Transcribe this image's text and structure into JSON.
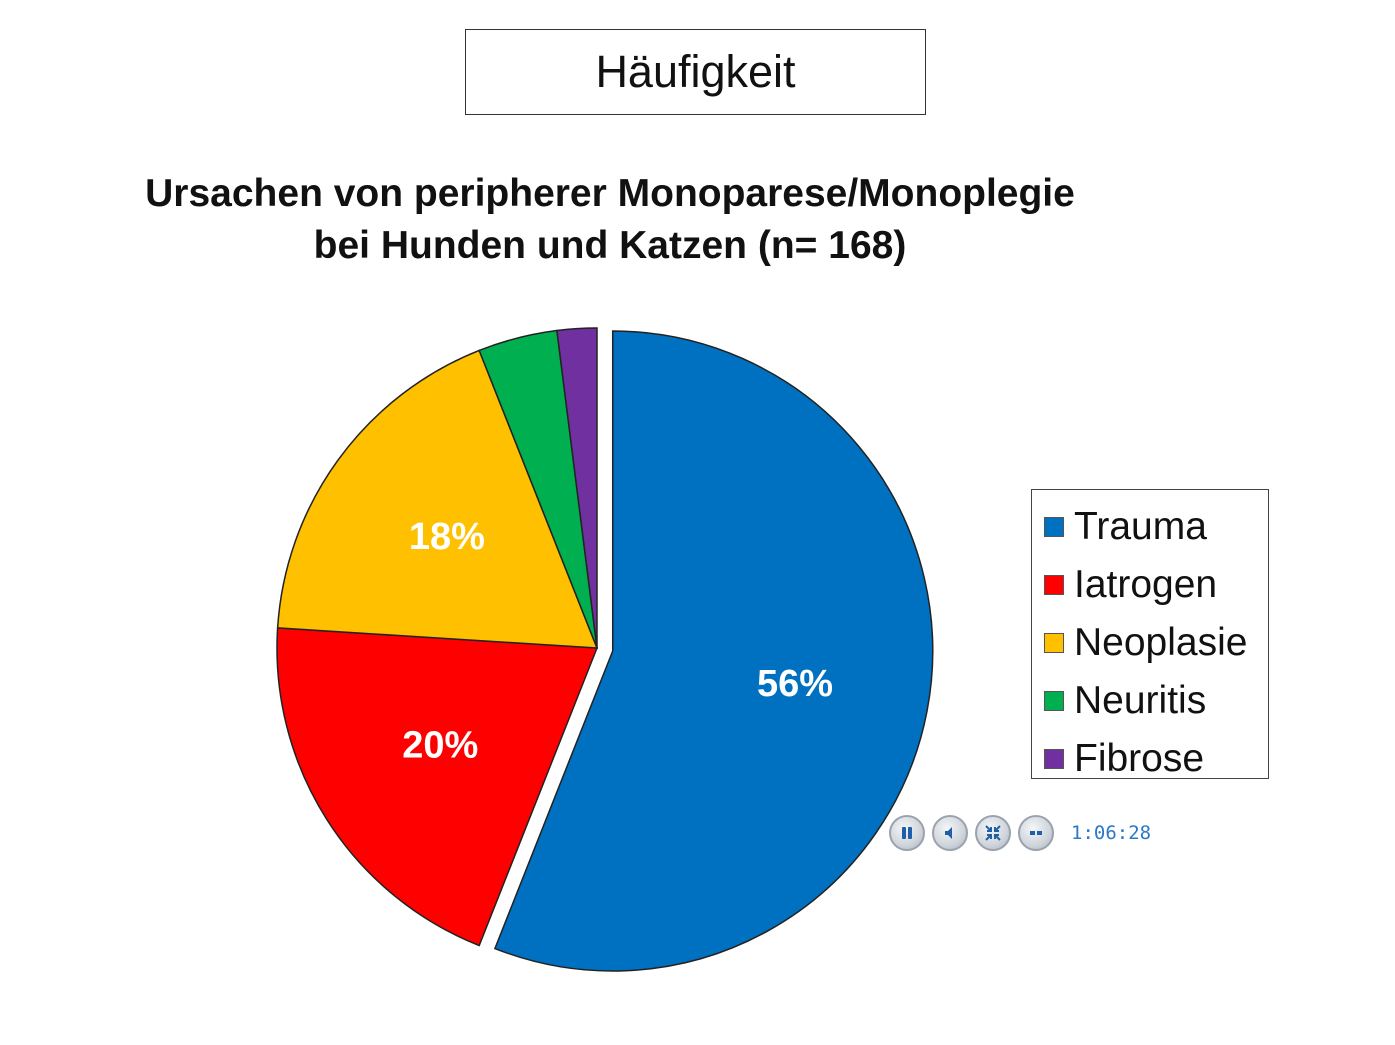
{
  "header": {
    "title": "Häufigkeit"
  },
  "chart_data": {
    "type": "pie",
    "title": "Ursachen von peripherer Monoparese/Monoplegie",
    "subtitle": "bei Hunden und Katzen (n= 168)",
    "slices": [
      {
        "name": "Trauma",
        "value": 56,
        "label": "56%",
        "color": "#0070C0",
        "exploded": true
      },
      {
        "name": "Iatrogen",
        "value": 20,
        "label": "20%",
        "color": "#FF0000",
        "exploded": false
      },
      {
        "name": "Neoplasie",
        "value": 18,
        "label": "18%",
        "color": "#FFC000",
        "exploded": false
      },
      {
        "name": "Neuritis",
        "value": 4,
        "label": "",
        "color": "#00B050",
        "exploded": false
      },
      {
        "name": "Fibrose",
        "value": 2,
        "label": "",
        "color": "#7030A0",
        "exploded": false
      }
    ],
    "legend_position": "right"
  },
  "player": {
    "time": "1:06:28",
    "controls": [
      {
        "name": "pause-icon"
      },
      {
        "name": "volume-icon"
      },
      {
        "name": "exit-fullscreen-icon"
      },
      {
        "name": "captions-icon"
      }
    ]
  }
}
